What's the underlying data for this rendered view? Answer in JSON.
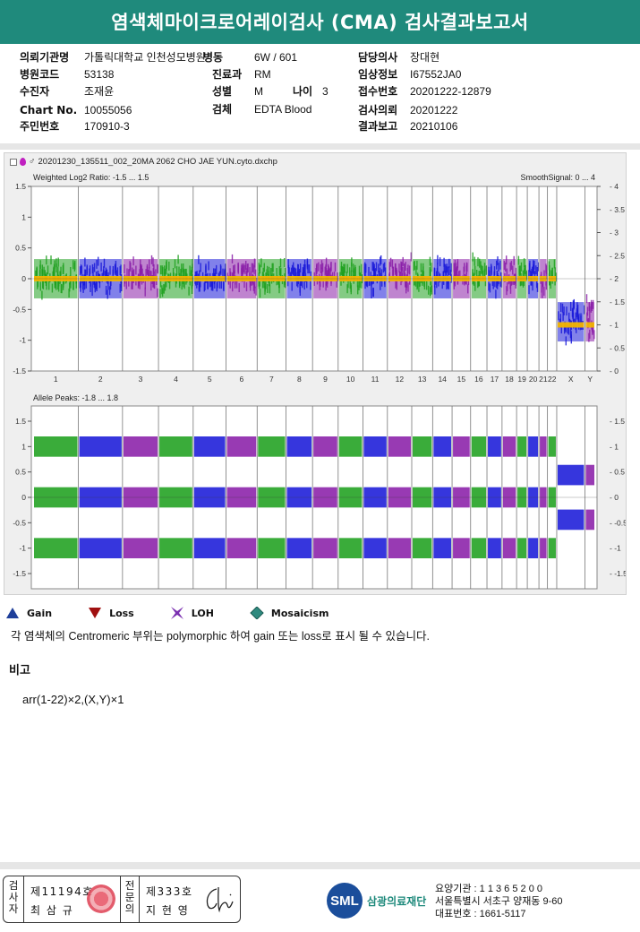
{
  "header": {
    "title": "염색체마이크로어레이검사 (CMA) 검사결과보고서"
  },
  "info": {
    "left": [
      {
        "label": "의뢰기관명",
        "value": "가톨릭대학교 인천성모병원"
      },
      {
        "label": "병원코드",
        "value": "53138"
      },
      {
        "label": "수진자",
        "value": "조재윤"
      },
      {
        "label": "Chart No.",
        "value": "10055056"
      },
      {
        "label": "주민번호",
        "value": "170910-3"
      }
    ],
    "middle": [
      {
        "label": "병동",
        "value": "6W / 601"
      },
      {
        "label": "진료과",
        "value": "RM"
      },
      {
        "label": "성별",
        "value": "M"
      },
      {
        "label": "검체",
        "value": "EDTA Blood"
      }
    ],
    "age": {
      "label": "나이",
      "value": "3"
    },
    "right": [
      {
        "label": "담당의사",
        "value": "장대현"
      },
      {
        "label": "임상정보",
        "value": "I67552JA0"
      },
      {
        "label": "접수번호",
        "value": "20201222-12879"
      },
      {
        "label": "검사의뢰",
        "value": "20201222"
      },
      {
        "label": "결과보고",
        "value": "20210106"
      }
    ]
  },
  "plot": {
    "file_name": "20201230_135511_002_20MA 2062 CHO JAE YUN.cyto.dxchp",
    "top_panel_label": "Weighted Log2 Ratio: -1.5 ... 1.5",
    "top_panel_right_label": "SmoothSignal: 0 ... 4",
    "bottom_panel_label": "Allele Peaks: -1.8 ... 1.8",
    "top_left_ticks": [
      "1.5",
      "1",
      "0.5",
      "0",
      "-0.5",
      "-1",
      "-1.5"
    ],
    "top_right_ticks": [
      "4",
      "3.5",
      "3",
      "2.5",
      "2",
      "1.5",
      "1",
      "0.5",
      "0"
    ],
    "bottom_ticks": [
      "1.5",
      "1",
      "0.5",
      "0",
      "-0.5",
      "-1",
      "-1.5"
    ],
    "chromosomes": [
      "1",
      "2",
      "3",
      "4",
      "5",
      "6",
      "7",
      "8",
      "9",
      "10",
      "11",
      "12",
      "13",
      "14",
      "15",
      "16",
      "17",
      "18",
      "19",
      "20",
      "21",
      "22",
      "X",
      "Y"
    ],
    "chrom_widths": [
      249,
      243,
      198,
      191,
      181,
      171,
      159,
      146,
      141,
      136,
      135,
      134,
      115,
      107,
      102,
      90,
      83,
      80,
      59,
      64,
      47,
      51,
      155,
      57
    ],
    "series_colors": [
      "#1fa01f",
      "#1a1ad8",
      "#8a1fa8"
    ],
    "smooth_color": "#f2b400"
  },
  "legend": [
    {
      "symbol": "gain-triangle-icon",
      "label": "Gain",
      "color": "#1f3f9a"
    },
    {
      "symbol": "loss-triangle-icon",
      "label": "Loss",
      "color": "#a01010"
    },
    {
      "symbol": "loh-star-icon",
      "label": "LOH",
      "color": "#7a2fb0"
    },
    {
      "symbol": "mosaicism-diamond-icon",
      "label": "Mosaicism",
      "color": "#2f8a7f"
    }
  ],
  "note": "각 염색체의 Centromeric 부위는 polymorphic 하여 gain 또는 loss로 표시 될 수 있습니다.",
  "remark": {
    "heading": "비고",
    "karyotype": "arr(1-22)×2,(X,Y)×1"
  },
  "signatures": {
    "tester_label": "검사자",
    "tester_id": "제11194호",
    "tester_name": "최 삼 규",
    "specialist_label": "전문의",
    "specialist_id": "제333호",
    "specialist_name": "지 현 영"
  },
  "footer": {
    "logo_text": "SML",
    "org_name": "삼광의료재단",
    "lines": [
      "요양기관 : 1 1 3 6 5 2 0 0",
      "서울특별시 서초구 양재동 9-60",
      "대표번호 : 1661-5117"
    ]
  }
}
